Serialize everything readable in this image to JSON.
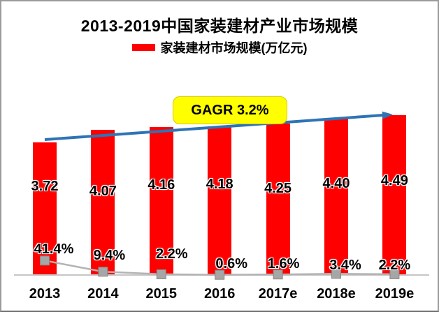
{
  "title": "2013-2019中国家装建材产业市场规模",
  "legend": {
    "label": "家装建材市场规模(万亿元)",
    "swatch_color": "#ff0000"
  },
  "annotation": {
    "text": "GAGR 3.2%",
    "fill": "#ffff00"
  },
  "chart_data": {
    "type": "bar",
    "title": "2013-2019中国家装建材产业市场规模",
    "legend_entries": [
      {
        "label": "家装建材市场规模(万亿元)",
        "color": "#ff0000"
      }
    ],
    "legend_position": "top",
    "grid": false,
    "y_axis_visible": false,
    "ylim": [
      0,
      5
    ],
    "categories": [
      "2013",
      "2014",
      "2015",
      "2016",
      "2017e",
      "2018e",
      "2019e"
    ],
    "series": [
      {
        "name": "家装建材市场规模(万亿元)",
        "type": "bar",
        "color": "#ff0000",
        "values": [
          3.72,
          4.07,
          4.16,
          4.18,
          4.25,
          4.4,
          4.49
        ],
        "data_labels": [
          "3.72",
          "4.07",
          "4.16",
          "4.18",
          "4.25",
          "4.40",
          "4.49"
        ]
      },
      {
        "name": "",
        "type": "line",
        "color": "#b3b3b3",
        "marker": "square",
        "marker_color": "#a6a6a6",
        "unit": "%",
        "values": [
          41.4,
          9.4,
          2.2,
          0.6,
          1.6,
          3.4,
          2.2
        ],
        "data_labels": [
          "41.4%",
          "9.4%",
          "2.2%",
          "0.6%",
          "1.6%",
          "3.4%",
          "2.2%"
        ]
      }
    ],
    "annotations": [
      {
        "text": "GAGR 3.2%",
        "fill": "#ffff00",
        "shape": "rounded-rect"
      }
    ],
    "trend_arrow": {
      "color": "#2e74b5",
      "direction": "up-right"
    }
  }
}
